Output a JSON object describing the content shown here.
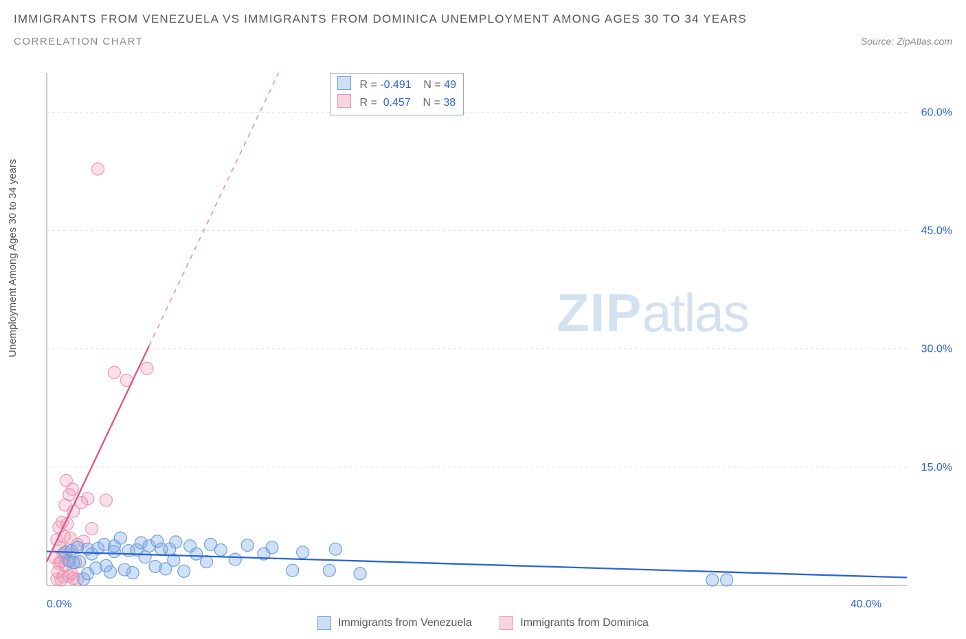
{
  "title": "IMMIGRANTS FROM VENEZUELA VS IMMIGRANTS FROM DOMINICA UNEMPLOYMENT AMONG AGES 30 TO 34 YEARS",
  "subtitle": "CORRELATION CHART",
  "source": "Source: ZipAtlas.com",
  "y_axis_label": "Unemployment Among Ages 30 to 34 years",
  "watermark_zip": "ZIP",
  "watermark_atlas": "atlas",
  "chart": {
    "type": "scatter",
    "plot_bg": "#ffffff",
    "grid_color": "#e4e4e8",
    "axis_line_color": "#b8b8c0",
    "tick_label_color": "#2a64d6",
    "font_size_ticks": 16,
    "font_size_axis_label": 15,
    "x_min": 0.0,
    "x_max": 42.0,
    "y_min": 0.0,
    "y_max": 65.0,
    "y_ticks": [
      15.0,
      30.0,
      45.0,
      60.0
    ],
    "y_tick_labels": [
      "15.0%",
      "30.0%",
      "45.0%",
      "60.0%"
    ],
    "x_ticks": [
      0.0,
      40.0
    ],
    "x_tick_labels": [
      "0.0%",
      "40.0%"
    ],
    "series": [
      {
        "name": "Immigrants from Venezuela",
        "color_fill": "rgba(120,165,230,0.35)",
        "color_stroke": "#6e9fe0",
        "line_color": "#2a64d6",
        "swatch_fill": "#cddff5",
        "swatch_border": "#6e9fe0",
        "marker_radius": 9,
        "R": "-0.491",
        "N": "49",
        "trend": {
          "x1": 0.0,
          "y1": 4.3,
          "x2": 42.0,
          "y2": 1.0,
          "dashed_from_x": null
        },
        "points": [
          [
            0.9,
            4.2
          ],
          [
            1.1,
            3.1
          ],
          [
            1.2,
            4.4
          ],
          [
            1.3,
            2.9
          ],
          [
            1.5,
            4.8
          ],
          [
            1.6,
            3.0
          ],
          [
            1.8,
            0.8
          ],
          [
            2.0,
            1.5
          ],
          [
            2.0,
            4.6
          ],
          [
            2.2,
            4.0
          ],
          [
            2.4,
            2.2
          ],
          [
            2.5,
            4.7
          ],
          [
            2.8,
            5.2
          ],
          [
            2.9,
            2.5
          ],
          [
            3.1,
            1.7
          ],
          [
            3.3,
            5.0
          ],
          [
            3.3,
            4.3
          ],
          [
            3.6,
            6.0
          ],
          [
            3.8,
            2.0
          ],
          [
            4.0,
            4.4
          ],
          [
            4.2,
            1.6
          ],
          [
            4.4,
            4.5
          ],
          [
            4.6,
            5.4
          ],
          [
            4.8,
            3.6
          ],
          [
            5.0,
            5.0
          ],
          [
            5.3,
            2.4
          ],
          [
            5.4,
            5.6
          ],
          [
            5.6,
            4.6
          ],
          [
            5.8,
            2.1
          ],
          [
            6.0,
            4.6
          ],
          [
            6.2,
            3.2
          ],
          [
            6.3,
            5.5
          ],
          [
            6.7,
            1.8
          ],
          [
            7.0,
            5.0
          ],
          [
            7.3,
            4.0
          ],
          [
            7.8,
            3.0
          ],
          [
            8.0,
            5.2
          ],
          [
            8.5,
            4.5
          ],
          [
            9.2,
            3.3
          ],
          [
            9.8,
            5.1
          ],
          [
            10.6,
            4.0
          ],
          [
            11.0,
            4.8
          ],
          [
            12.0,
            1.9
          ],
          [
            12.5,
            4.2
          ],
          [
            13.8,
            1.9
          ],
          [
            14.1,
            4.6
          ],
          [
            15.3,
            1.5
          ],
          [
            32.5,
            0.7
          ],
          [
            33.2,
            0.7
          ]
        ]
      },
      {
        "name": "Immigrants from Dominica",
        "color_fill": "rgba(240,150,180,0.30)",
        "color_stroke": "#e997b2",
        "line_color": "#e0527f",
        "swatch_fill": "#f8d4df",
        "swatch_border": "#e997b2",
        "marker_radius": 9,
        "R": "0.457",
        "N": "38",
        "trend": {
          "x1": 0.0,
          "y1": 3.0,
          "x2": 11.5,
          "y2": 66.0,
          "dashed_from_x": 5.0
        },
        "points": [
          [
            0.4,
            3.5
          ],
          [
            0.5,
            0.8
          ],
          [
            0.5,
            5.8
          ],
          [
            0.55,
            1.7
          ],
          [
            0.6,
            2.8
          ],
          [
            0.6,
            7.4
          ],
          [
            0.65,
            4.8
          ],
          [
            0.7,
            0.7
          ],
          [
            0.7,
            3.0
          ],
          [
            0.75,
            8.0
          ],
          [
            0.8,
            1.1
          ],
          [
            0.8,
            4.0
          ],
          [
            0.85,
            6.2
          ],
          [
            0.9,
            2.5
          ],
          [
            0.9,
            10.2
          ],
          [
            0.95,
            13.3
          ],
          [
            1.0,
            3.2
          ],
          [
            1.0,
            7.8
          ],
          [
            1.05,
            4.5
          ],
          [
            1.1,
            1.2
          ],
          [
            1.1,
            11.5
          ],
          [
            1.15,
            6.0
          ],
          [
            1.2,
            1.5
          ],
          [
            1.25,
            12.2
          ],
          [
            1.3,
            0.9
          ],
          [
            1.3,
            9.4
          ],
          [
            1.4,
            2.9
          ],
          [
            1.5,
            0.8
          ],
          [
            1.5,
            5.2
          ],
          [
            1.7,
            10.5
          ],
          [
            1.8,
            5.6
          ],
          [
            2.0,
            11.0
          ],
          [
            2.2,
            7.2
          ],
          [
            2.5,
            52.8
          ],
          [
            2.9,
            10.8
          ],
          [
            3.3,
            27.0
          ],
          [
            3.9,
            26.0
          ],
          [
            4.9,
            27.5
          ]
        ]
      }
    ]
  },
  "info_box": {
    "r_label": "R =",
    "n_label": "N ="
  },
  "legend": {
    "items": [
      "Immigrants from Venezuela",
      "Immigrants from Dominica"
    ]
  }
}
